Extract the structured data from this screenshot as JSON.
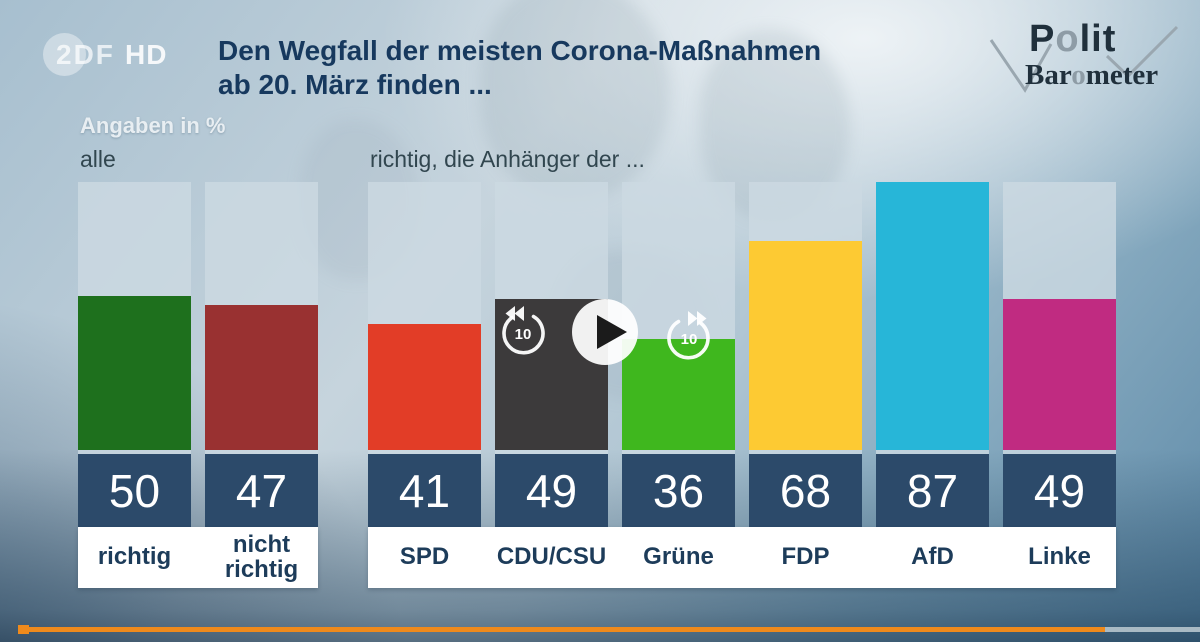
{
  "watermark": {
    "zdf": "2DF",
    "hd": "HD"
  },
  "header": {
    "title_line1": "Den Wegfall der meisten Corona-Maßnahmen",
    "title_line2": "ab 20. März finden ...",
    "units_label": "Angaben in %"
  },
  "brand": {
    "line1_p": "P",
    "line1_o": "o",
    "line1_lit": "lit",
    "line2_bar": "Bar",
    "line2_o": "o",
    "line2_meter": "meter"
  },
  "chart_data": {
    "type": "bar",
    "title": "Den Wegfall der meisten Corona-Maßnahmen ab 20. März finden ...",
    "units_label": "Angaben in %",
    "ylabel": "Angaben in %",
    "ylim": [
      0,
      100
    ],
    "grid": false,
    "groups": [
      {
        "label": "alle",
        "bars": [
          {
            "category": "richtig",
            "value": 50,
            "color": "#1e701d"
          },
          {
            "category": "nicht richtig",
            "value": 47,
            "color": "#993131"
          }
        ]
      },
      {
        "label": "richtig, die Anhänger der ...",
        "bars": [
          {
            "category": "SPD",
            "value": 41,
            "color": "#e23d27"
          },
          {
            "category": "CDU/CSU",
            "value": 49,
            "color": "#3c3a3b"
          },
          {
            "category": "Grüne",
            "value": 36,
            "color": "#3fb71e"
          },
          {
            "category": "FDP",
            "value": 68,
            "color": "#fdca33"
          },
          {
            "category": "AfD",
            "value": 87,
            "color": "#27b6d8"
          },
          {
            "category": "Linke",
            "value": 49,
            "color": "#c02b81"
          }
        ]
      }
    ],
    "colors": {
      "value_box": "#2c4a6a",
      "label_band": "#ffffff",
      "bar_track": "#ccd9e2",
      "title_text": "#17395e",
      "progress_orange": "#ef8a1c"
    }
  },
  "player": {
    "rewind_label": "10",
    "forward_label": "10",
    "progress_percent": 92
  }
}
